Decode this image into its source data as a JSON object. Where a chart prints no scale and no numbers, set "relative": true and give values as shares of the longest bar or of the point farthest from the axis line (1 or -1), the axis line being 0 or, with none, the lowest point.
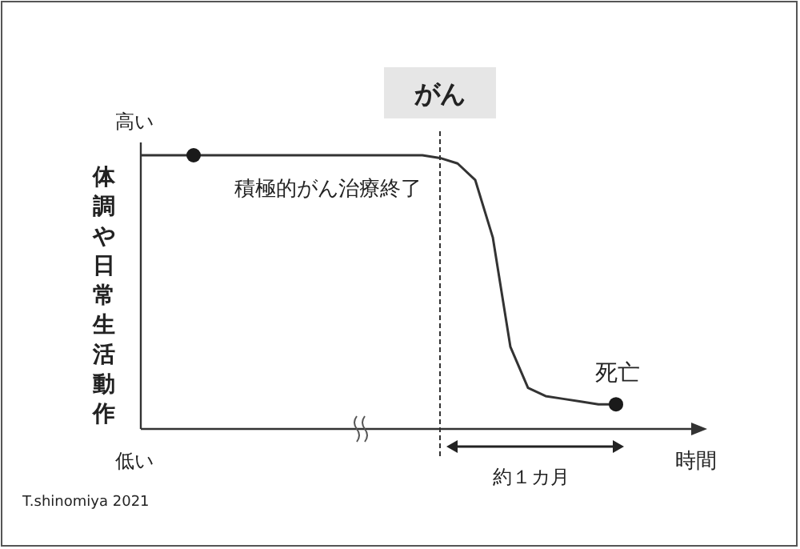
{
  "chart_data": {
    "type": "line",
    "relative": true,
    "xlabel": "時間",
    "ylabel": "体調や日常生活動作",
    "categories": [
      null,
      null,
      null,
      null,
      null,
      null,
      null,
      null,
      null,
      null,
      null,
      null,
      null,
      null,
      null,
      null,
      null,
      null,
      null,
      null,
      null,
      null,
      null,
      null,
      null,
      null,
      null,
      null
    ],
    "series": [
      {
        "color": "#333333",
        "values": [
          1,
          1,
          1,
          1,
          1,
          1,
          1,
          1,
          1,
          1,
          1,
          1,
          1,
          1,
          1,
          1,
          1,
          0.99,
          0.97,
          0.91,
          0.7,
          0.3,
          0.15,
          0.12,
          0.11,
          0.1,
          0.09,
          0.09
        ]
      }
    ],
    "ref_lines": [
      {
        "axis": "x",
        "label": "がん",
        "line_style": "dashed",
        "color": "#333333"
      }
    ],
    "annotations": [
      {
        "text": "積極的がん治療終了",
        "y": 1
      },
      {
        "text": "死亡",
        "y": 0.09
      },
      "約１カ月",
      "高い",
      "低い",
      "T.shinomiya 2021"
    ]
  }
}
